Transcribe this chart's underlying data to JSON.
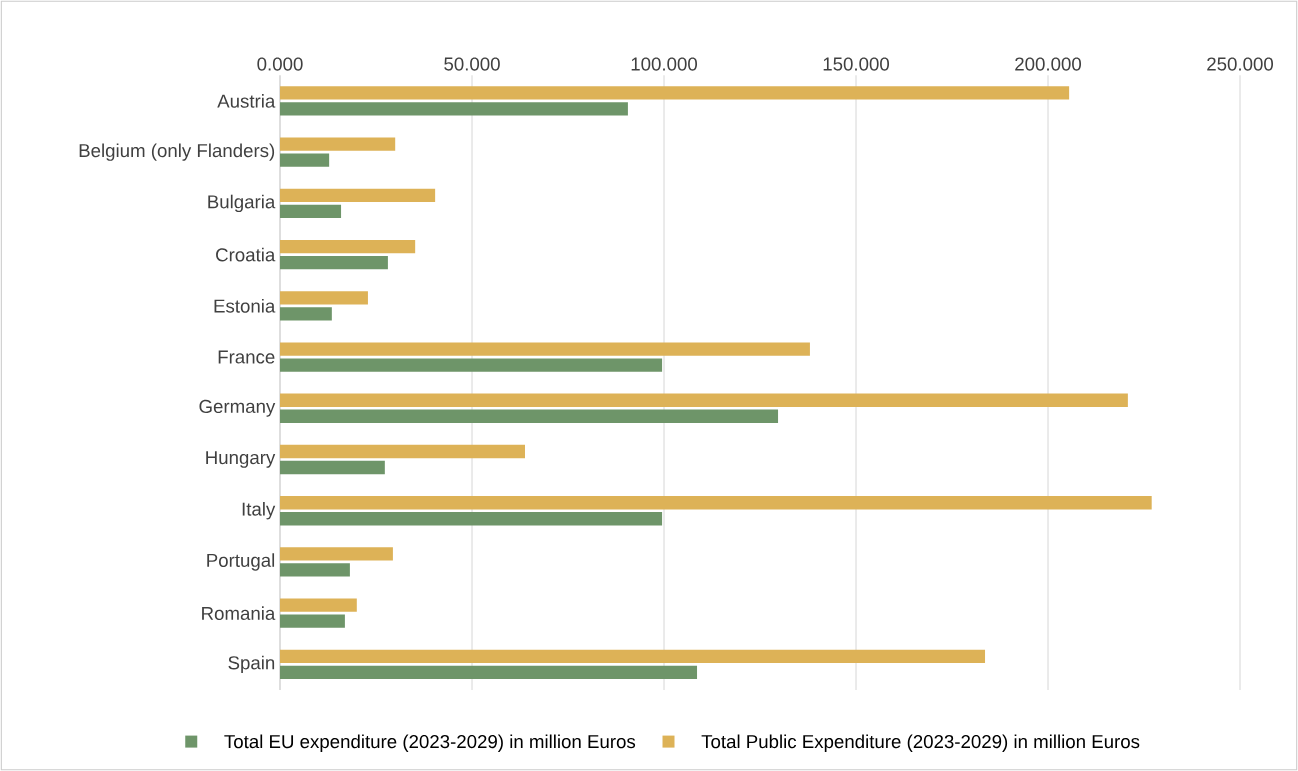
{
  "chart_data": {
    "type": "bar",
    "orientation": "horizontal",
    "categories": [
      "Austria",
      "Belgium (only Flanders)",
      "Bulgaria",
      "Croatia",
      "Estonia",
      "France",
      "Germany",
      "Hungary",
      "Italy",
      "Portugal",
      "Romania",
      "Spain"
    ],
    "series": [
      {
        "name": "Total EU expenditure (2023-2029) in million Euros",
        "color": "#6e9569",
        "values": [
          90.6,
          12.8,
          15.9,
          28.1,
          13.5,
          99.5,
          129.7,
          27.3,
          99.5,
          18.2,
          16.9,
          108.6
        ]
      },
      {
        "name": "Total Public Expenditure (2023-2029) in million Euros",
        "color": "#ddb257",
        "values": [
          205.5,
          30.0,
          40.4,
          35.2,
          22.9,
          138.0,
          220.8,
          63.8,
          227.0,
          29.4,
          20.0,
          183.6
        ]
      }
    ],
    "xlim": [
      0,
      250
    ],
    "xticks": [
      {
        "value": 0,
        "label": "0.000"
      },
      {
        "value": 50,
        "label": "50.000"
      },
      {
        "value": 100,
        "label": "100.000"
      },
      {
        "value": 150,
        "label": "150.000"
      },
      {
        "value": 200,
        "label": "200.000"
      },
      {
        "value": 250,
        "label": "250.000"
      }
    ],
    "grid": "x",
    "legend": "bottom"
  }
}
